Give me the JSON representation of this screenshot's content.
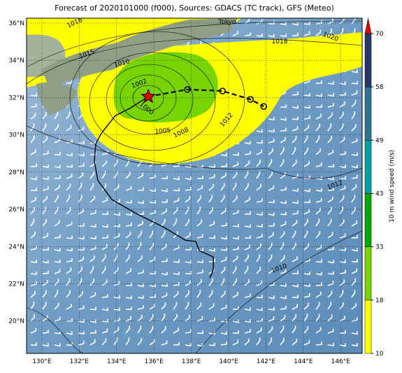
{
  "title": "Forecast of 2020101000 (f000), Sources: GDACS (TC track), GFS (Meteo)",
  "map": {
    "lonlim": [
      129.18,
      147.15
    ],
    "latlim": [
      18.26,
      36.26
    ],
    "lonticks": [
      {
        "value": 130,
        "label": "130°E"
      },
      {
        "value": 132,
        "label": "132°E"
      },
      {
        "value": 134,
        "label": "134°E"
      },
      {
        "value": 136,
        "label": "136°E"
      },
      {
        "value": 138,
        "label": "138°E"
      },
      {
        "value": 140,
        "label": "140°E"
      },
      {
        "value": 142,
        "label": "142°E"
      },
      {
        "value": 144,
        "label": "144°E"
      },
      {
        "value": 146,
        "label": "146°E"
      }
    ],
    "latticks": [
      {
        "value": 20,
        "label": "20°N"
      },
      {
        "value": 22,
        "label": "22°N"
      },
      {
        "value": 24,
        "label": "24°N"
      },
      {
        "value": 26,
        "label": "26°N"
      },
      {
        "value": 28,
        "label": "28°N"
      },
      {
        "value": 30,
        "label": "30°N"
      },
      {
        "value": 32,
        "label": "32°N"
      },
      {
        "value": 34,
        "label": "34°N"
      },
      {
        "value": 36,
        "label": "36°N"
      }
    ],
    "place_labels": [
      "Tokyo"
    ],
    "contour_labels": [
      1016,
      1015,
      1018,
      1020,
      1010,
      1002,
      1000,
      1005,
      1008,
      1012,
      1012,
      1010
    ]
  },
  "track": {
    "observed": {
      "lon": [
        138.99,
        139.18,
        139.18,
        138.43,
        138.24,
        137.68,
        136.56,
        135.06,
        133.75,
        133.0,
        132.81,
        132.89,
        133.19,
        133.94,
        134.69,
        135.7
      ],
      "lat": [
        22.31,
        22.76,
        23.44,
        23.78,
        24.27,
        24.34,
        25.02,
        25.77,
        26.52,
        27.54,
        28.59,
        29.53,
        30.09,
        31.03,
        31.41,
        32.05
      ]
    },
    "forecast": {
      "lon": [
        135.7,
        137.79,
        139.67,
        141.17,
        141.88
      ],
      "lat": [
        32.05,
        32.43,
        32.35,
        31.9,
        31.52
      ]
    }
  },
  "colorbar": {
    "label": "10 m wind speed (m/s)",
    "ticks": [
      10,
      18,
      33,
      43,
      49,
      58,
      70
    ],
    "colors": [
      "#ffff00",
      "#78d400",
      "#00a800",
      "#00a0a0",
      "#2c7590",
      "#24386b"
    ]
  }
}
